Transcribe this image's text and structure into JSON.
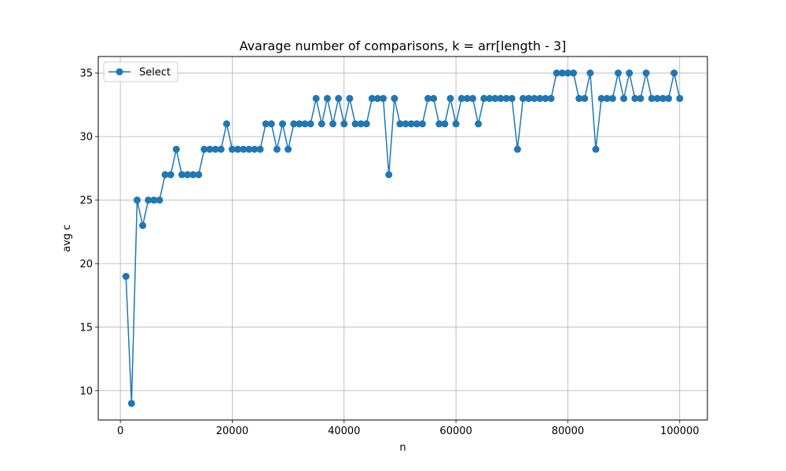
{
  "chart_data": {
    "type": "line",
    "title": "Avarage number of comparisons, k = arr[length - 3]",
    "xlabel": "n",
    "ylabel": "avg c",
    "xlim": [
      -3950,
      104950
    ],
    "ylim": [
      7.7,
      36.3
    ],
    "xticks": [
      0,
      20000,
      40000,
      60000,
      80000,
      100000
    ],
    "yticks": [
      10,
      15,
      20,
      25,
      30,
      35
    ],
    "grid": true,
    "legend_position": "top-left",
    "series": [
      {
        "name": "Select",
        "color": "#1f77b4",
        "marker": "circle",
        "x": [
          1000,
          2000,
          3000,
          4000,
          5000,
          6000,
          7000,
          8000,
          9000,
          10000,
          11000,
          12000,
          13000,
          14000,
          15000,
          16000,
          17000,
          18000,
          19000,
          20000,
          21000,
          22000,
          23000,
          24000,
          25000,
          26000,
          27000,
          28000,
          29000,
          30000,
          31000,
          32000,
          33000,
          34000,
          35000,
          36000,
          37000,
          38000,
          39000,
          40000,
          41000,
          42000,
          43000,
          44000,
          45000,
          46000,
          47000,
          48000,
          49000,
          50000,
          51000,
          52000,
          53000,
          54000,
          55000,
          56000,
          57000,
          58000,
          59000,
          60000,
          61000,
          62000,
          63000,
          64000,
          65000,
          66000,
          67000,
          68000,
          69000,
          70000,
          71000,
          72000,
          73000,
          74000,
          75000,
          76000,
          77000,
          78000,
          79000,
          80000,
          81000,
          82000,
          83000,
          84000,
          85000,
          86000,
          87000,
          88000,
          89000,
          90000,
          91000,
          92000,
          93000,
          94000,
          95000,
          96000,
          97000,
          98000,
          99000,
          100000
        ],
        "y": [
          19,
          9,
          25,
          23,
          25,
          25,
          25,
          27,
          27,
          29,
          27,
          27,
          27,
          27,
          29,
          29,
          29,
          29,
          31,
          29,
          29,
          29,
          29,
          29,
          29,
          31,
          31,
          29,
          31,
          29,
          31,
          31,
          31,
          31,
          33,
          31,
          33,
          31,
          33,
          31,
          33,
          31,
          31,
          31,
          33,
          33,
          33,
          27,
          33,
          31,
          31,
          31,
          31,
          31,
          33,
          33,
          31,
          31,
          33,
          31,
          33,
          33,
          33,
          31,
          33,
          33,
          33,
          33,
          33,
          33,
          29,
          33,
          33,
          33,
          33,
          33,
          33,
          35,
          35,
          35,
          35,
          33,
          33,
          35,
          29,
          33,
          33,
          33,
          35,
          33,
          35,
          33,
          33,
          35,
          33,
          33,
          33,
          33,
          35,
          33
        ]
      }
    ]
  }
}
